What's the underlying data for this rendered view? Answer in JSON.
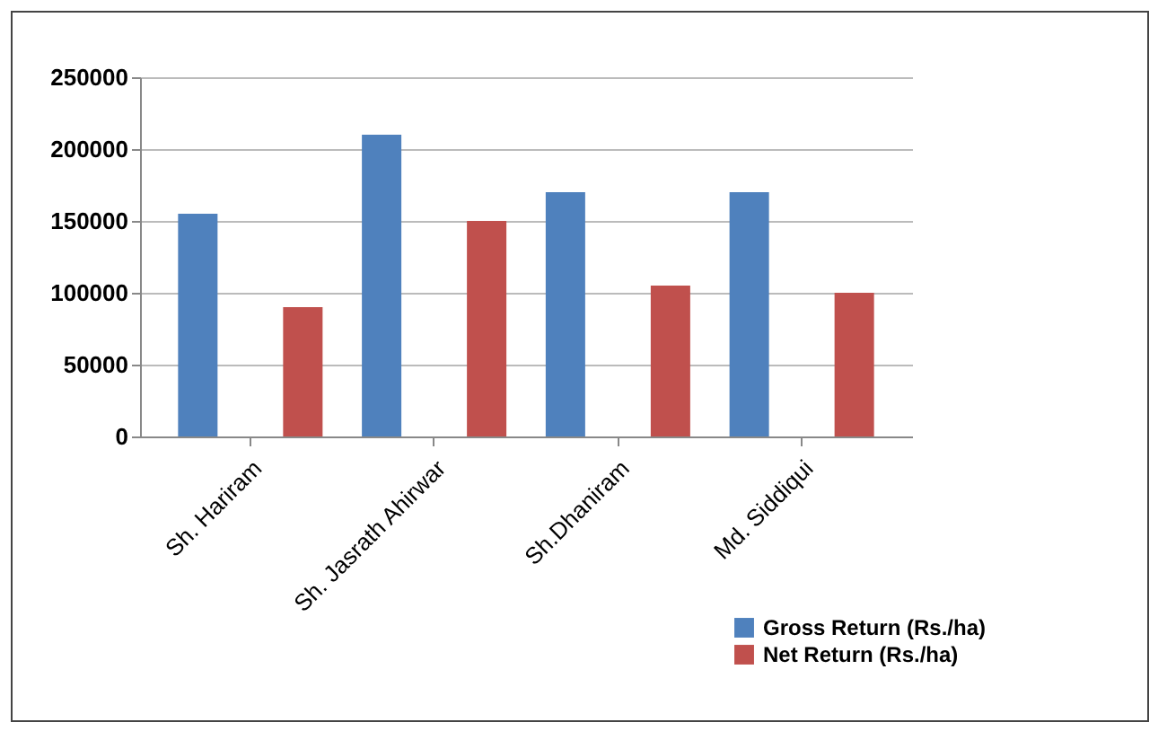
{
  "chart_data": {
    "type": "bar",
    "categories": [
      "Sh. Hariram",
      "Sh. Jasrath Ahirwar",
      "Sh.Dhaniram",
      "Md. Siddiqui"
    ],
    "series": [
      {
        "name": "Gross Return (Rs./ha)",
        "color": "#4f81bd",
        "values": [
          155000,
          210000,
          170000,
          170000
        ]
      },
      {
        "name": "Net Return (Rs./ha)",
        "color": "#c0504d",
        "values": [
          90000,
          150000,
          105000,
          100000
        ]
      }
    ],
    "ylim": [
      0,
      250000
    ],
    "yticks": [
      0,
      50000,
      100000,
      150000,
      200000,
      250000
    ],
    "grid": "y",
    "legend": "bottom right"
  }
}
